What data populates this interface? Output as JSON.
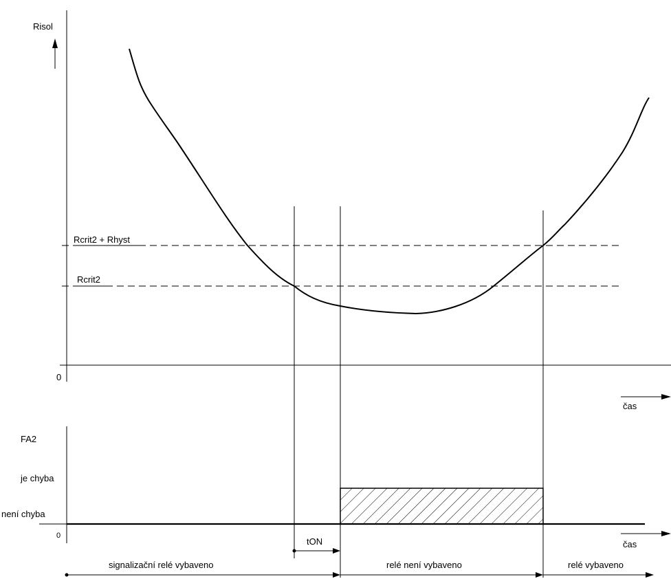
{
  "top_plot": {
    "y_axis_label": "Risol",
    "origin_label": "0",
    "x_axis_label": "čas",
    "threshold_upper_label": "Rcrit2 + Rhyst",
    "threshold_lower_label": "Rcrit2"
  },
  "bottom_plot": {
    "y_axis_label": "FA2",
    "state_high_label": "je chyba",
    "state_low_label": "není chyba",
    "origin_label": "0",
    "x_axis_label": "čas",
    "delay_label": "tON"
  },
  "phases": [
    {
      "label": "signalizační relé vybaveno"
    },
    {
      "label": "relé není vybaveno"
    },
    {
      "label": "relé vybaveno"
    }
  ]
}
